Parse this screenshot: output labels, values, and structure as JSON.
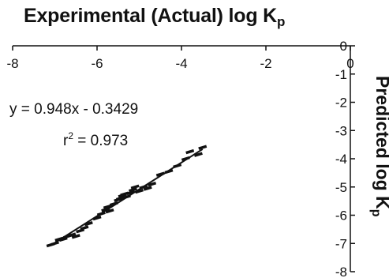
{
  "chart_data": {
    "type": "scatter",
    "title": "Experimental (Actual) log K",
    "title_subscript": "p",
    "xlabel": "Experimental (Actual) log K",
    "ylabel": "Predicted log K",
    "ylabel_subscript": "p",
    "xlim": [
      -8,
      0
    ],
    "ylim": [
      -8,
      0
    ],
    "x_ticks": [
      -8,
      -6,
      -4,
      -2,
      0
    ],
    "y_ticks": [
      0,
      -1,
      -2,
      -3,
      -4,
      -5,
      -6,
      -7,
      -8
    ],
    "x_axis_position": "top",
    "y_axis_position": "right",
    "grid": false,
    "legend": "none",
    "equation": "y = 0.948x - 0.3429",
    "r2_prefix": "r",
    "r2_suffix": " = 0.973",
    "trendline": {
      "slope": 0.948,
      "intercept": -0.3429
    },
    "series": [
      {
        "marker": "dash",
        "x": [
          -7.1,
          -7.0,
          -6.9,
          -6.8,
          -6.7,
          -6.6,
          -6.5,
          -6.4,
          -6.3,
          -6.2,
          -6.0,
          -5.9,
          -5.8,
          -5.75,
          -5.7,
          -5.6,
          -5.5,
          -5.45,
          -5.4,
          -5.35,
          -5.3,
          -5.2,
          -5.15,
          -5.1,
          -5.0,
          -4.9,
          -4.8,
          -4.7,
          -4.5,
          -4.3,
          -4.1,
          -3.9,
          -3.8,
          -3.6,
          -3.5
        ],
        "y": [
          -7.05,
          -7.0,
          -6.85,
          -6.85,
          -6.75,
          -6.7,
          -6.75,
          -6.55,
          -6.45,
          -6.3,
          -6.1,
          -5.95,
          -5.8,
          -5.7,
          -5.85,
          -5.6,
          -5.45,
          -5.4,
          -5.3,
          -5.25,
          -5.35,
          -5.2,
          -5.1,
          -5.0,
          -5.15,
          -5.0,
          -5.05,
          -4.9,
          -4.55,
          -4.45,
          -4.25,
          -4.0,
          -3.75,
          -3.85,
          -3.6
        ]
      }
    ]
  }
}
